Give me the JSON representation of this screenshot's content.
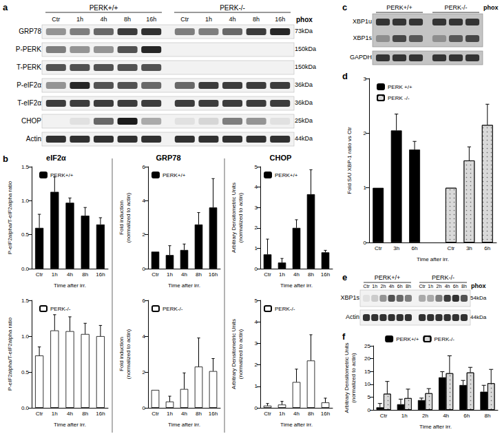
{
  "letters": [
    "a",
    "b",
    "c",
    "d",
    "e",
    "f"
  ],
  "chart_data": [
    {
      "type": "bar",
      "title": "eIF2α",
      "categories": [
        "Ctr",
        "1h",
        "4h",
        "8h",
        "16h"
      ],
      "series": [
        {
          "name": "PERK+/+",
          "color": "#000000",
          "values": [
            0.6,
            1.13,
            0.97,
            0.78,
            0.65
          ],
          "errors": [
            0.2,
            0.22,
            0.07,
            0.12,
            0.1
          ]
        }
      ],
      "x_label": "Time after irr.",
      "y_label": "P-eIF2alpha/T-eIF2alpha ratio",
      "ylim": [
        0,
        1.5
      ],
      "yticks": [
        {
          "value": 0,
          "label": "0.0"
        },
        {
          "value": 0.5,
          "label": "0.5"
        },
        {
          "value": 1,
          "label": "1.0"
        },
        {
          "value": 1.5,
          "label": "1.5"
        }
      ],
      "grid": false,
      "legend": "upper left"
    },
    {
      "type": "bar",
      "categories": [
        "Ctr",
        "1h",
        "4h",
        "8h",
        "16h"
      ],
      "series": [
        {
          "name": "PERK-/-",
          "color": "#ffffff",
          "values": [
            0.73,
            1.08,
            1.07,
            1.03,
            1.0
          ],
          "errors": [
            0.12,
            0.22,
            0.2,
            0.15,
            0.15
          ]
        }
      ],
      "x_label": "Time after irr.",
      "y_label": "P-eIF2alpha/T-eIF2alpha ratio",
      "ylim": [
        0,
        1.5
      ],
      "yticks": [
        {
          "value": 0,
          "label": "0.0"
        },
        {
          "value": 0.5,
          "label": "0.5"
        },
        {
          "value": 1,
          "label": "1.0"
        },
        {
          "value": 1.5,
          "label": "1.5"
        }
      ],
      "grid": false,
      "legend": "upper left"
    },
    {
      "type": "bar",
      "title": "GRP78",
      "categories": [
        "Ctr",
        "1h",
        "4h",
        "8h",
        "16h"
      ],
      "series": [
        {
          "name": "PERK+/+",
          "color": "#000000",
          "values": [
            1.0,
            0.8,
            1.1,
            2.6,
            3.6
          ],
          "errors": [
            null,
            0.55,
            0.35,
            0.7,
            1.7
          ]
        }
      ],
      "x_label": "Time after irr.",
      "y_label": "Fold induction\n(normalized to actin)",
      "ylim": [
        0,
        6
      ],
      "yticks": [
        0,
        2,
        4,
        6
      ],
      "grid": false,
      "legend": "upper left"
    },
    {
      "type": "bar",
      "categories": [
        "Ctr",
        "1h",
        "4h",
        "8h",
        "16h"
      ],
      "series": [
        {
          "name": "PERK-/-",
          "color": "#ffffff",
          "values": [
            1.0,
            0.35,
            1.05,
            2.3,
            2.05
          ],
          "errors": [
            null,
            0.3,
            0.9,
            1.6,
            0.7
          ]
        }
      ],
      "x_label": "Time after irr.",
      "y_label": "Fold induction\n(normalized to actin)",
      "ylim": [
        0,
        6
      ],
      "yticks": [
        0,
        2,
        4,
        6
      ],
      "grid": false,
      "legend": "upper left"
    },
    {
      "type": "bar",
      "title": "CHOP",
      "categories": [
        "Ctr",
        "1h",
        "4h",
        "8h",
        "16h"
      ],
      "series": [
        {
          "name": "PERK+/+",
          "color": "#000000",
          "values": [
            0.7,
            0.3,
            2.0,
            3.65,
            0.8
          ],
          "errors": [
            0.75,
            0.2,
            0.4,
            1.2,
            0.1
          ]
        }
      ],
      "x_label": "Time after irr.",
      "y_label": "Arbitrary Densitometric Units\n(normalized to actin)",
      "ylim": [
        0,
        5
      ],
      "yticks": [
        0,
        1,
        2,
        3,
        4,
        5
      ],
      "grid": false,
      "legend": "upper left"
    },
    {
      "type": "bar",
      "categories": [
        "Ctr",
        "1h",
        "4h",
        "8h",
        "16h"
      ],
      "series": [
        {
          "name": "PERK-/-",
          "color": "#ffffff",
          "values": [
            0.1,
            0.15,
            1.2,
            2.2,
            0.25
          ],
          "errors": [
            0.1,
            0.15,
            0.6,
            1.2,
            0.2
          ]
        }
      ],
      "x_label": "Time after irr.",
      "y_label": "Arbitrary Densitometric Units\n(normalized to actin)",
      "ylim": [
        0,
        5
      ],
      "yticks": [
        0,
        1,
        2,
        3,
        4,
        5
      ],
      "grid": false,
      "legend": "upper left"
    },
    {
      "type": "bar",
      "categories": [
        "Ctr",
        "3h",
        "6h",
        null,
        "Ctr",
        "3h",
        "6h"
      ],
      "series": [
        {
          "name": "PERK +/+",
          "color": "#000000",
          "values": [
            1.0,
            2.05,
            1.7,
            null,
            null,
            null,
            null
          ],
          "errors": [
            null,
            0.3,
            0.15,
            null,
            null,
            null,
            null
          ]
        },
        {
          "name": "PERK -/-",
          "color": "#d9d9d9",
          "values": [
            null,
            null,
            null,
            null,
            1.0,
            1.5,
            2.15
          ],
          "errors": [
            null,
            null,
            null,
            null,
            null,
            0.25,
            0.38
          ]
        }
      ],
      "x_label": "Time after irr.",
      "y_label": "Fold S/U XBP-1 ratio vs Ctr",
      "ylim": [
        0,
        3
      ],
      "yticks": [
        0,
        1,
        2,
        3
      ],
      "grid": false,
      "legend": "upper left"
    },
    {
      "type": "bar",
      "categories": [
        "Ctr",
        "1h",
        "2h",
        "4h",
        "6h",
        "8h"
      ],
      "series": [
        {
          "name": "PERK+/+",
          "color": "#000000",
          "values": [
            1.0,
            2.2,
            3.8,
            12.7,
            9.7,
            7.1
          ],
          "errors": [
            1.5,
            2.0,
            0.8,
            2.2,
            1.8,
            2.5
          ]
        },
        {
          "name": "PERK-/-",
          "color": "#d9d9d9",
          "values": [
            6.3,
            4.6,
            6.5,
            14.3,
            14.6,
            10.4
          ],
          "errors": [
            4.8,
            3.5,
            1.8,
            6.8,
            2.0,
            5.4
          ]
        }
      ],
      "x_label": "Time after irr.",
      "y_label": "Arbitrary Densitometric Units\n(normalized to actin)",
      "ylim": [
        0,
        25
      ],
      "yticks": [
        0,
        5,
        10,
        15,
        20,
        25
      ],
      "grid": false,
      "legend": "upper center"
    }
  ],
  "blots": [
    {
      "groups": [
        {
          "name": "PERK+/+",
          "lanes": [
            "Ctr",
            "1h",
            "4h",
            "8h",
            "16h"
          ]
        },
        {
          "name": "PERK-/-",
          "lanes": [
            "Ctr",
            "1h",
            "4h",
            "8h",
            "16h"
          ]
        }
      ],
      "treatment": "phox",
      "strips": [
        {
          "rows": [
            {
              "label": "GRP78",
              "size": "73kDa",
              "intensity": [
                0.4,
                0.5,
                0.6,
                0.8,
                0.85,
                0.5,
                0.5,
                0.6,
                0.8,
                0.9
              ]
            }
          ]
        },
        {
          "rows": [
            {
              "label": "P-PERK",
              "size": "150kDa",
              "intensity": [
                0.5,
                0.4,
                0.4,
                0.7,
                0.9,
                0,
                0,
                0,
                0,
                0
              ]
            }
          ]
        },
        {
          "rows": [
            {
              "label": "T-PERK",
              "size": "150kDa",
              "intensity": [
                0.7,
                0.7,
                0.7,
                0.7,
                0.7,
                0,
                0,
                0,
                0,
                0
              ]
            }
          ]
        },
        {
          "rows": [
            {
              "label": "P-eIF2α",
              "size": "36kDa",
              "intensity": [
                0.4,
                0.9,
                0.7,
                0.7,
                0.6,
                0.6,
                0.8,
                0.8,
                0.8,
                0.8
              ]
            }
          ]
        },
        {
          "rows": [
            {
              "label": "T-eIF2α",
              "size": "36kDa",
              "intensity": [
                0.8,
                0.8,
                0.8,
                0.8,
                0.8,
                0.8,
                0.8,
                0.8,
                0.8,
                0.8
              ]
            }
          ]
        },
        {
          "rows": [
            {
              "label": "CHOP",
              "size": "25kDa",
              "intensity": [
                0,
                0.05,
                0.6,
                0.95,
                0.3,
                0.05,
                0.1,
                0.5,
                0.4,
                0.05
              ]
            }
          ]
        },
        {
          "rows": [
            {
              "label": "Actin",
              "size": "44kDa",
              "intensity": [
                0.85,
                0.85,
                0.85,
                0.85,
                0.85,
                0.85,
                0.85,
                0.85,
                0.85,
                0.85
              ]
            }
          ]
        }
      ]
    },
    {
      "groups": [
        {
          "name": "PERK+/+",
          "lanes": [
            null,
            null,
            null
          ]
        },
        {
          "name": "PERK-/-",
          "lanes": [
            null,
            null,
            null
          ]
        }
      ],
      "treatment": "phox",
      "strips": [
        {
          "rows": [
            {
              "label": "XBP1u",
              "intensity": [
                0.8,
                0.8,
                0.8,
                0.8,
                0.8,
                0.8
              ]
            },
            {
              "label": "XBP1s",
              "intensity": [
                0.3,
                0.7,
                0.6,
                0.3,
                0.6,
                0.7
              ]
            }
          ]
        },
        {
          "rows": [
            {
              "label": "GAPDH",
              "intensity": [
                0.8,
                0.8,
                0.8,
                0.8,
                0.8,
                0.8
              ]
            }
          ]
        }
      ]
    },
    {
      "groups": [
        {
          "name": "PERK+/+",
          "lanes": [
            "Ctr",
            "1h",
            "2h",
            "4h",
            "6h",
            "8h"
          ]
        },
        {
          "name": "PERK-/-",
          "lanes": [
            "Ctr",
            "1h",
            "2h",
            "4h",
            "6h",
            "8h"
          ]
        }
      ],
      "treatment": "phox",
      "strips": [
        {
          "rows": [
            {
              "label": "XBP1s",
              "size": "54kDa",
              "intensity": [
                0.05,
                0.15,
                0.4,
                0.7,
                0.6,
                0.5,
                0.3,
                0.3,
                0.5,
                0.8,
                0.85,
                0.7
              ]
            }
          ]
        },
        {
          "rows": [
            {
              "label": "Actin",
              "size": "44kDa",
              "intensity": [
                0.85,
                0.85,
                0.85,
                0.85,
                0.85,
                0.85,
                0.85,
                0.85,
                0.85,
                0.85,
                0.85,
                0.85
              ]
            }
          ]
        }
      ]
    }
  ]
}
